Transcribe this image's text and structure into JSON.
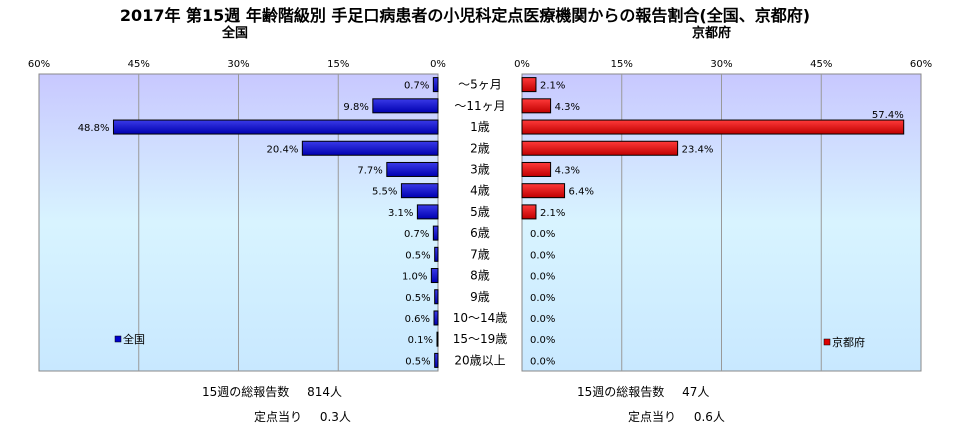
{
  "title": "2017年 第15週 年齢階級別 手足口病患者の小児科定点医療機関からの報告割合(全国、京都府)",
  "chart_data": [
    {
      "type": "bar",
      "orientation": "horizontal",
      "direction": "right-to-left",
      "title": "全国",
      "legend": "全国",
      "legend_position": "bottom-left",
      "color": "#0000CC",
      "xlim": [
        0,
        60
      ],
      "ticks": [
        "60%",
        "45%",
        "30%",
        "15%",
        "0%"
      ],
      "tick_values": [
        60,
        45,
        30,
        15,
        0
      ],
      "categories": [
        "～5ヶ月",
        "～11ヶ月",
        "1歳",
        "2歳",
        "3歳",
        "4歳",
        "5歳",
        "6歳",
        "7歳",
        "8歳",
        "9歳",
        "10～14歳",
        "15～19歳",
        "20歳以上"
      ],
      "values": [
        0.7,
        9.8,
        48.8,
        20.4,
        7.7,
        5.5,
        3.1,
        0.7,
        0.5,
        1.0,
        0.5,
        0.6,
        0.1,
        0.5
      ],
      "labels": [
        "0.7%",
        "9.8%",
        "48.8%",
        "20.4%",
        "7.7%",
        "5.5%",
        "3.1%",
        "0.7%",
        "0.5%",
        "1.0%",
        "0.5%",
        "0.6%",
        "0.1%",
        "0.5%"
      ]
    },
    {
      "type": "bar",
      "orientation": "horizontal",
      "direction": "left-to-right",
      "title": "京都府",
      "legend": "京都府",
      "legend_position": "bottom-right",
      "color": "#DD0000",
      "xlim": [
        0,
        60
      ],
      "ticks": [
        "0%",
        "15%",
        "30%",
        "45%",
        "60%"
      ],
      "tick_values": [
        0,
        15,
        30,
        45,
        60
      ],
      "categories": [
        "～5ヶ月",
        "～11ヶ月",
        "1歳",
        "2歳",
        "3歳",
        "4歳",
        "5歳",
        "6歳",
        "7歳",
        "8歳",
        "9歳",
        "10～14歳",
        "15～19歳",
        "20歳以上"
      ],
      "values": [
        2.1,
        4.3,
        57.4,
        23.4,
        4.3,
        6.4,
        2.1,
        0.0,
        0.0,
        0.0,
        0.0,
        0.0,
        0.0,
        0.0
      ],
      "labels": [
        "2.1%",
        "4.3%",
        "57.4%",
        "23.4%",
        "4.3%",
        "6.4%",
        "2.1%",
        "0.0%",
        "0.0%",
        "0.0%",
        "0.0%",
        "0.0%",
        "0.0%",
        "0.0%"
      ]
    }
  ],
  "footer": {
    "national": {
      "total_label": "15週の総報告数",
      "total_value": "814人",
      "per_label": "定点当り",
      "per_value": "0.3人"
    },
    "kyoto": {
      "total_label": "15週の総報告数",
      "total_value": "47人",
      "per_label": "定点当り",
      "per_value": "0.6人"
    }
  }
}
